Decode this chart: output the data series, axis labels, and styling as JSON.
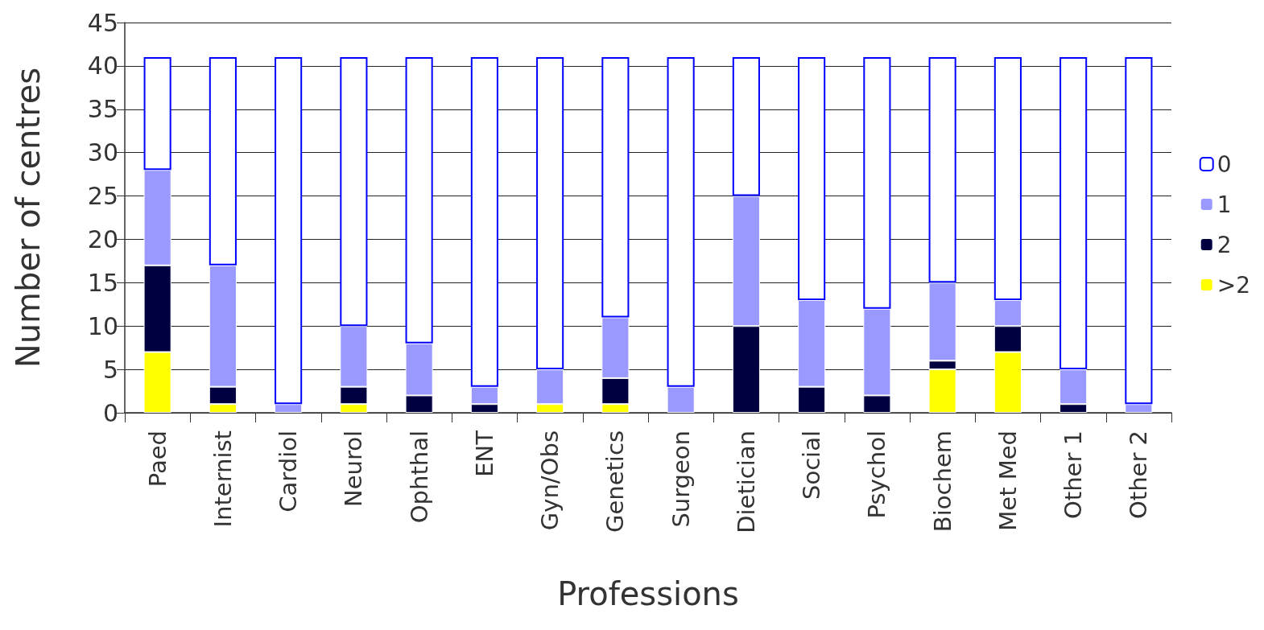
{
  "chart_data": {
    "type": "bar",
    "stacked": true,
    "xlabel": "Professions",
    "ylabel": "Number of centres",
    "categories": [
      "Paed",
      "Internist",
      "Cardiol",
      "Neurol",
      "Ophthal",
      "ENT",
      "Gyn/Obs",
      "Genetics",
      "Surgeon",
      "Dietician",
      "Social",
      "Psychol",
      "Biochem",
      "Met Med",
      "Other 1",
      "Other 2"
    ],
    "series": [
      {
        "name": ">2",
        "color": "#ffff00",
        "values": [
          7,
          1,
          0,
          1,
          0,
          0,
          1,
          1,
          0,
          0,
          0,
          0,
          5,
          7,
          0,
          0
        ]
      },
      {
        "name": "2",
        "color": "#000040",
        "values": [
          10,
          2,
          0,
          2,
          2,
          1,
          0,
          3,
          0,
          10,
          3,
          2,
          1,
          3,
          1,
          0
        ]
      },
      {
        "name": "1",
        "color": "#9999ff",
        "values": [
          11,
          14,
          1,
          7,
          6,
          2,
          4,
          7,
          3,
          15,
          10,
          10,
          9,
          3,
          4,
          1
        ]
      },
      {
        "name": "0",
        "color": "#ffffff",
        "values": [
          13,
          24,
          40,
          31,
          33,
          38,
          36,
          30,
          38,
          16,
          28,
          29,
          26,
          28,
          36,
          40
        ]
      }
    ],
    "ylim": [
      0,
      45
    ],
    "yticks": [
      0,
      5,
      10,
      15,
      20,
      25,
      30,
      35,
      40,
      45
    ],
    "grid": "y",
    "legend": "right"
  }
}
